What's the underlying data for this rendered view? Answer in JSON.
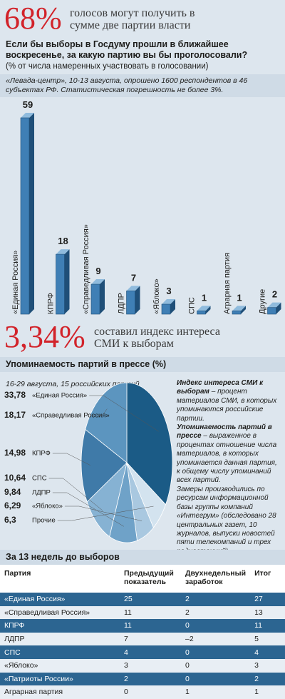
{
  "header": {
    "figure": "68%",
    "text": "голосов могут получить в сумме две партии власти"
  },
  "chart_data": [
    {
      "type": "bar",
      "title": "Если бы выборы в Госдуму прошли в ближайшее воскресенье, за какую партию вы бы проголосовали?",
      "subtitle": "(% от числа намеренных участвовать в голосовании)",
      "source": "«Левада-центр», 10-13 августа, опрошено 1600 респондентов в 46 субъектах РФ. Статистическая погрешность не более 3%.",
      "categories": [
        "«Единая Россия»",
        "КПРФ",
        "«Справедливая Россия»",
        "ЛДПР",
        "«Яблоко»",
        "СПС",
        "Аграрная партия",
        "Другие"
      ],
      "values": [
        59,
        18,
        9,
        7,
        3,
        1,
        1,
        2
      ],
      "color": "#3f7fb5"
    },
    {
      "type": "pie",
      "title": "Упоминаемость партий в прессе (%)",
      "subtitle": "16-29 августа, 15 российских партий",
      "categories": [
        "«Единая Россия»",
        "«Справедливая Россия»",
        "КПРФ",
        "СПС",
        "ЛДПР",
        "«Яблоко»",
        "Прочие"
      ],
      "values": [
        33.78,
        18.17,
        14.98,
        10.64,
        9.84,
        6.29,
        6.3
      ],
      "value_labels": [
        "33,78",
        "18,17",
        "14,98",
        "10,64",
        "9,84",
        "6,29",
        "6,3"
      ],
      "colors": [
        "#1b5b86",
        "#5c95bf",
        "#3f7aa8",
        "#86b2d3",
        "#6fa2c8",
        "#a9c8e0",
        "#d3e3ef"
      ]
    }
  ],
  "header2": {
    "figure": "3,34%",
    "text": "составил индекс интереса СМИ к выборам"
  },
  "note": {
    "term1": "Индекс интереса СМИ к выборам",
    "text1": " – процент материалов СМИ, в которых упоминаются российские партии.",
    "term2": "Упоминаемость партий в прессе",
    "text2": " – выраженное в процентах отношение числа материалов, в которых упоминается данная партия, к общему числу упоминаний всех партий.",
    "text3": "Замеры производились по ресурсам информационной базы группы компаний «Интегрум» (обследовано 28 центральных газет, 10 журналов, выпуски новостей пяти телекомпаний и трех радиостанций)."
  },
  "table": {
    "title": "За 13 недель до выборов",
    "columns": [
      "Партия",
      "Предыдущий показатель",
      "Двухнедельный заработок",
      "Итог"
    ],
    "rows": [
      [
        "«Единая Россия»",
        "25",
        "2",
        "27"
      ],
      [
        "«Справедливая Россия»",
        "11",
        "2",
        "13"
      ],
      [
        "КПРФ",
        "11",
        "0",
        "11"
      ],
      [
        "ЛДПР",
        "7",
        "–2",
        "5"
      ],
      [
        "СПС",
        "4",
        "0",
        "4"
      ],
      [
        "«Яблоко»",
        "3",
        "0",
        "3"
      ],
      [
        "«Патриоты России»",
        "2",
        "0",
        "2"
      ],
      [
        "Аграрная партия",
        "0",
        "1",
        "1"
      ]
    ]
  }
}
